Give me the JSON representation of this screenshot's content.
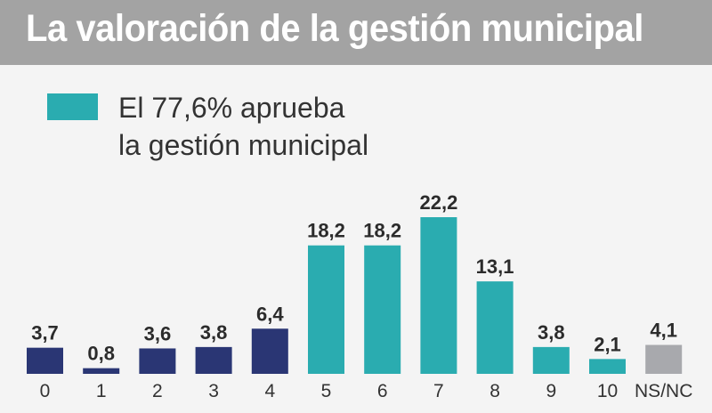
{
  "header": {
    "title": "La valoración de la gestión municipal"
  },
  "legend": {
    "line1": "El 77,6% aprueba",
    "line2": "la gestión municipal"
  },
  "colors": {
    "approve": "#2aacb0",
    "disapprove": "#2a3674",
    "no_answer": "#a8a9ad",
    "title_bar": "#a3a3a3"
  },
  "chart_data": {
    "type": "bar",
    "title": "La valoración de la gestión municipal",
    "categories": [
      "0",
      "1",
      "2",
      "3",
      "4",
      "5",
      "6",
      "7",
      "8",
      "9",
      "10",
      "NS/NC"
    ],
    "values": [
      3.7,
      0.8,
      3.6,
      3.8,
      6.4,
      18.2,
      18.2,
      22.2,
      13.1,
      3.8,
      2.1,
      4.1
    ],
    "value_labels": [
      "3,7",
      "0,8",
      "3,6",
      "3,8",
      "6,4",
      "18,2",
      "18,2",
      "22,2",
      "13,1",
      "3,8",
      "2,1",
      "4,1"
    ],
    "groups": [
      "disapprove",
      "disapprove",
      "disapprove",
      "disapprove",
      "disapprove",
      "approve",
      "approve",
      "approve",
      "approve",
      "approve",
      "approve",
      "no_answer"
    ],
    "xlabel": "",
    "ylabel": "",
    "ylim": [
      0,
      22.2
    ],
    "grid": false,
    "legend": "top-left"
  }
}
